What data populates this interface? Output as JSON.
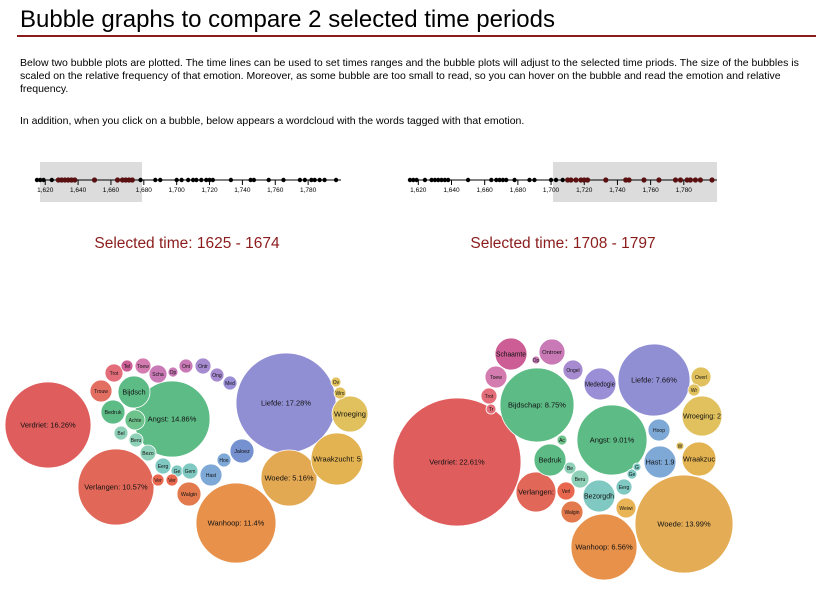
{
  "page": {
    "title": "Bubble graphs to compare 2 selected time periods",
    "intro": "Below two bubble plots are plotted. The time lines can be used to set times ranges and the bubble plots will adjust to the selected time priods. The size of the bubbles is scaled on the relative frequency of that emotion. Moreover, as some bubble are too small to read, so you can hover on the bubble and read the emotion and relative frequency.",
    "note": "In addition, when you click on a bubble, below appears a wordcloud with the words tagged with that emotion."
  },
  "colors": {
    "accent": "#8b1c1c",
    "brush": "#dcdcdc",
    "dot_selected": "#5a1010",
    "dot": "#000000"
  },
  "timeline": {
    "ticks": [
      "1,620",
      "1,640",
      "1,660",
      "1,680",
      "1,700",
      "1,720",
      "1,740",
      "1,760",
      "1,780"
    ],
    "tick_values": [
      1620,
      1640,
      1660,
      1680,
      1700,
      1720,
      1740,
      1760,
      1780
    ],
    "domain": [
      1615,
      1800
    ],
    "dots": [
      1615,
      1617,
      1619,
      1624,
      1628,
      1630,
      1632,
      1634,
      1636,
      1638,
      1650,
      1664,
      1667,
      1669,
      1671,
      1673,
      1678,
      1687,
      1690,
      1700,
      1703,
      1707,
      1710,
      1712,
      1715,
      1718,
      1720,
      1722,
      1733,
      1745,
      1747,
      1756,
      1765,
      1775,
      1778,
      1782,
      1784,
      1787,
      1790,
      1797
    ]
  },
  "chart_data": [
    {
      "type": "bubble",
      "title": "Selected time: 1625 - 1674",
      "selected_range": [
        1625,
        1674
      ],
      "bubbles": [
        {
          "label": "Verdriet: 16.26%",
          "color": "#e05d5d"
        },
        {
          "label": "Verlangen: 10.57%",
          "color": "#e16758"
        },
        {
          "label": "Angst: 14.86%",
          "color": "#5dbb86"
        },
        {
          "label": "Liefde: 17.28%",
          "color": "#918fd4"
        },
        {
          "label": "Woede: 5.16%",
          "color": "#e3a852"
        },
        {
          "label": "Wanhoop: 11.4%",
          "color": "#e8914a"
        },
        {
          "label": "Wraakzucht: 5",
          "color": "#e3b251"
        },
        {
          "label": "Wroeging",
          "color": "#e0c15d"
        },
        {
          "label": "Bijdsch",
          "color": "#5dbb86"
        },
        {
          "label": "Trouw",
          "color": "#e36e62"
        },
        {
          "label": "Trot",
          "color": "#e36e7a"
        },
        {
          "label": "Tel",
          "color": "#cc5d95"
        },
        {
          "label": "Toew",
          "color": "#d47cb0"
        },
        {
          "label": "Scha",
          "color": "#c97ab6"
        },
        {
          "label": "Op",
          "color": "#c97ab6"
        },
        {
          "label": "Ont",
          "color": "#c97ab6"
        },
        {
          "label": "Ontr",
          "color": "#a78bd1"
        },
        {
          "label": "Ong",
          "color": "#a78bd1"
        },
        {
          "label": "Med",
          "color": "#9a8ed6"
        },
        {
          "label": "Bedruk",
          "color": "#5dbb86"
        },
        {
          "label": "Achte",
          "color": "#6ec38d"
        },
        {
          "label": "Bel",
          "color": "#8fd1b8"
        },
        {
          "label": "Beru",
          "color": "#8fd1b8"
        },
        {
          "label": "Bezo",
          "color": "#8fd1b8"
        },
        {
          "label": "Eerg",
          "color": "#7fc9c2"
        },
        {
          "label": "Ge",
          "color": "#7fc9c2"
        },
        {
          "label": "Gem",
          "color": "#7fc9c2"
        },
        {
          "label": "Hast",
          "color": "#7ea9d6"
        },
        {
          "label": "Hoo",
          "color": "#7ea9d6"
        },
        {
          "label": "Jaloez",
          "color": "#7591cf"
        },
        {
          "label": "Ver",
          "color": "#e8674e"
        },
        {
          "label": "Ver",
          "color": "#e8674e"
        },
        {
          "label": "Walgin",
          "color": "#e37a4e"
        },
        {
          "label": "Ov",
          "color": "#e0c15d"
        },
        {
          "label": "Wro",
          "color": "#e0c15d"
        }
      ]
    },
    {
      "type": "bubble",
      "title": "Selected time: 1708 - 1797",
      "selected_range": [
        1708,
        1797
      ],
      "bubbles": [
        {
          "label": "Verdriet: 22.61%",
          "color": "#e05d5d"
        },
        {
          "label": "Bijdschap: 8.75%",
          "color": "#5dbb86"
        },
        {
          "label": "Angst: 9.01%",
          "color": "#5dbb86"
        },
        {
          "label": "Liefde: 7.66%",
          "color": "#918fd4"
        },
        {
          "label": "Woede: 13.99%",
          "color": "#e3ac55"
        },
        {
          "label": "Wanhoop: 6.56%",
          "color": "#e8914a"
        },
        {
          "label": "Wroeging: 2",
          "color": "#e0c15d"
        },
        {
          "label": "Wraakzuc",
          "color": "#e3b251"
        },
        {
          "label": "Hast: 1.9",
          "color": "#7ea9d6"
        },
        {
          "label": "Hoop",
          "color": "#7ea9d6"
        },
        {
          "label": "Verlangen:",
          "color": "#e16758"
        },
        {
          "label": "Bedruk",
          "color": "#5dbb86"
        },
        {
          "label": "Schaamte",
          "color": "#cc5d95"
        },
        {
          "label": "Ontroer",
          "color": "#c97ab6"
        },
        {
          "label": "Op",
          "color": "#c97ab6"
        },
        {
          "label": "Toew",
          "color": "#d47cb0"
        },
        {
          "label": "Trot",
          "color": "#e36e7a"
        },
        {
          "label": "Tr",
          "color": "#e36e7a"
        },
        {
          "label": "Ongel",
          "color": "#a78bd1"
        },
        {
          "label": "Mededogie",
          "color": "#9a8ed6"
        },
        {
          "label": "Ac",
          "color": "#6ec38d"
        },
        {
          "label": "Be",
          "color": "#8fd1b8"
        },
        {
          "label": "Beru",
          "color": "#8fd1b8"
        },
        {
          "label": "Bezorgdh",
          "color": "#7fc9c2"
        },
        {
          "label": "Eerg",
          "color": "#7fc9c2"
        },
        {
          "label": "Ge",
          "color": "#7fc9c2"
        },
        {
          "label": "G",
          "color": "#7fc9c2"
        },
        {
          "label": "Verl",
          "color": "#e8674e"
        },
        {
          "label": "Walgin",
          "color": "#e37a4e"
        },
        {
          "label": "Weiwi",
          "color": "#e8b455"
        },
        {
          "label": "Overl",
          "color": "#e0c15d"
        },
        {
          "label": "Wr",
          "color": "#e0c15d"
        },
        {
          "label": "W",
          "color": "#e0c15d"
        }
      ]
    }
  ]
}
